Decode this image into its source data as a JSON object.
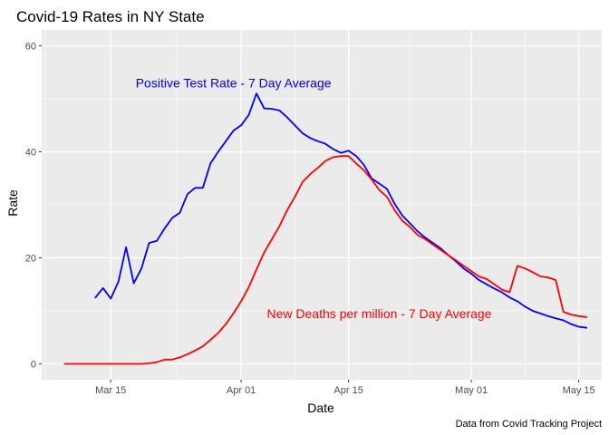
{
  "chart_data": {
    "type": "line",
    "title": "Covid-19 Rates in NY State",
    "xlabel": "Date",
    "ylabel": "Rate",
    "caption": "Data from Covid Tracking Project",
    "xlim": [
      "2020-03-06",
      "2020-05-18"
    ],
    "ylim": [
      -3,
      63
    ],
    "x_ticks": [
      {
        "date": "2020-03-15",
        "label": "Mar 15"
      },
      {
        "date": "2020-04-01",
        "label": "Apr 01"
      },
      {
        "date": "2020-04-15",
        "label": "Apr 15"
      },
      {
        "date": "2020-05-01",
        "label": "May 01"
      },
      {
        "date": "2020-05-15",
        "label": "May 15"
      }
    ],
    "y_ticks": [
      0,
      20,
      40,
      60
    ],
    "grid": true,
    "background": "#ebebeb",
    "series": [
      {
        "color": "#0000ff",
        "annotation": {
          "text": "Positive Test Rate - 7 Day Average",
          "date": "2020-03-31",
          "y": 53
        },
        "points": [
          [
            "2020-03-13",
            12.5
          ],
          [
            "2020-03-14",
            14.3
          ],
          [
            "2020-03-15",
            12.3
          ],
          [
            "2020-03-16",
            15.5
          ],
          [
            "2020-03-17",
            22.0
          ],
          [
            "2020-03-18",
            15.2
          ],
          [
            "2020-03-19",
            18.0
          ],
          [
            "2020-03-20",
            22.8
          ],
          [
            "2020-03-21",
            23.2
          ],
          [
            "2020-03-22",
            25.5
          ],
          [
            "2020-03-23",
            27.5
          ],
          [
            "2020-03-24",
            28.5
          ],
          [
            "2020-03-25",
            32.0
          ],
          [
            "2020-03-26",
            33.2
          ],
          [
            "2020-03-27",
            33.2
          ],
          [
            "2020-03-28",
            37.8
          ],
          [
            "2020-03-29",
            40.0
          ],
          [
            "2020-03-30",
            42.0
          ],
          [
            "2020-03-31",
            44.0
          ],
          [
            "2020-04-01",
            45.0
          ],
          [
            "2020-04-02",
            47.0
          ],
          [
            "2020-04-03",
            51.0
          ],
          [
            "2020-04-04",
            48.2
          ],
          [
            "2020-04-05",
            48.1
          ],
          [
            "2020-04-06",
            47.8
          ],
          [
            "2020-04-07",
            46.5
          ],
          [
            "2020-04-08",
            45.0
          ],
          [
            "2020-04-09",
            43.5
          ],
          [
            "2020-04-10",
            42.6
          ],
          [
            "2020-04-11",
            42.0
          ],
          [
            "2020-04-12",
            41.5
          ],
          [
            "2020-04-13",
            40.5
          ],
          [
            "2020-04-14",
            39.8
          ],
          [
            "2020-04-15",
            40.2
          ],
          [
            "2020-04-16",
            39.2
          ],
          [
            "2020-04-17",
            37.5
          ],
          [
            "2020-04-18",
            35.0
          ],
          [
            "2020-04-19",
            34.0
          ],
          [
            "2020-04-20",
            33.0
          ],
          [
            "2020-04-21",
            30.2
          ],
          [
            "2020-04-22",
            28.0
          ],
          [
            "2020-04-23",
            26.5
          ],
          [
            "2020-04-24",
            25.0
          ],
          [
            "2020-04-25",
            23.8
          ],
          [
            "2020-04-26",
            22.8
          ],
          [
            "2020-04-27",
            21.8
          ],
          [
            "2020-04-28",
            20.5
          ],
          [
            "2020-04-29",
            19.3
          ],
          [
            "2020-04-30",
            18.0
          ],
          [
            "2020-05-01",
            17.0
          ],
          [
            "2020-05-02",
            15.8
          ],
          [
            "2020-05-03",
            15.0
          ],
          [
            "2020-05-04",
            14.2
          ],
          [
            "2020-05-05",
            13.5
          ],
          [
            "2020-05-06",
            12.5
          ],
          [
            "2020-05-07",
            11.8
          ],
          [
            "2020-05-08",
            10.8
          ],
          [
            "2020-05-09",
            10.0
          ],
          [
            "2020-05-10",
            9.5
          ],
          [
            "2020-05-11",
            9.0
          ],
          [
            "2020-05-12",
            8.6
          ],
          [
            "2020-05-13",
            8.2
          ],
          [
            "2020-05-14",
            7.5
          ],
          [
            "2020-05-15",
            7.0
          ],
          [
            "2020-05-16",
            6.8
          ]
        ]
      },
      {
        "color": "#ff0000",
        "annotation": {
          "text": "New Deaths per million - 7 Day Average",
          "date": "2020-04-19",
          "y": 9.5
        },
        "points": [
          [
            "2020-03-09",
            0.0
          ],
          [
            "2020-03-10",
            0.0
          ],
          [
            "2020-03-11",
            0.0
          ],
          [
            "2020-03-12",
            0.0
          ],
          [
            "2020-03-13",
            0.0
          ],
          [
            "2020-03-14",
            0.0
          ],
          [
            "2020-03-15",
            0.0
          ],
          [
            "2020-03-16",
            0.0
          ],
          [
            "2020-03-17",
            0.0
          ],
          [
            "2020-03-18",
            0.0
          ],
          [
            "2020-03-19",
            0.0
          ],
          [
            "2020-03-20",
            0.1
          ],
          [
            "2020-03-21",
            0.3
          ],
          [
            "2020-03-22",
            0.8
          ],
          [
            "2020-03-23",
            0.8
          ],
          [
            "2020-03-24",
            1.2
          ],
          [
            "2020-03-25",
            1.8
          ],
          [
            "2020-03-26",
            2.5
          ],
          [
            "2020-03-27",
            3.3
          ],
          [
            "2020-03-28",
            4.5
          ],
          [
            "2020-03-29",
            5.8
          ],
          [
            "2020-03-30",
            7.5
          ],
          [
            "2020-03-31",
            9.5
          ],
          [
            "2020-04-01",
            11.8
          ],
          [
            "2020-04-02",
            14.5
          ],
          [
            "2020-04-03",
            17.8
          ],
          [
            "2020-04-04",
            21.0
          ],
          [
            "2020-04-05",
            23.5
          ],
          [
            "2020-04-06",
            26.0
          ],
          [
            "2020-04-07",
            29.0
          ],
          [
            "2020-04-08",
            31.5
          ],
          [
            "2020-04-09",
            34.3
          ],
          [
            "2020-04-10",
            35.8
          ],
          [
            "2020-04-11",
            37.0
          ],
          [
            "2020-04-12",
            38.3
          ],
          [
            "2020-04-13",
            39.0
          ],
          [
            "2020-04-14",
            39.2
          ],
          [
            "2020-04-15",
            39.2
          ],
          [
            "2020-04-16",
            37.8
          ],
          [
            "2020-04-17",
            36.5
          ],
          [
            "2020-04-18",
            34.8
          ],
          [
            "2020-04-19",
            32.8
          ],
          [
            "2020-04-20",
            31.5
          ],
          [
            "2020-04-21",
            29.0
          ],
          [
            "2020-04-22",
            27.0
          ],
          [
            "2020-04-23",
            25.8
          ],
          [
            "2020-04-24",
            24.3
          ],
          [
            "2020-04-25",
            23.5
          ],
          [
            "2020-04-26",
            22.5
          ],
          [
            "2020-04-27",
            21.5
          ],
          [
            "2020-04-28",
            20.5
          ],
          [
            "2020-04-29",
            19.5
          ],
          [
            "2020-04-30",
            18.5
          ],
          [
            "2020-05-01",
            17.5
          ],
          [
            "2020-05-02",
            16.5
          ],
          [
            "2020-05-03",
            16.0
          ],
          [
            "2020-05-04",
            15.0
          ],
          [
            "2020-05-05",
            14.0
          ],
          [
            "2020-05-06",
            13.5
          ],
          [
            "2020-05-07",
            18.5
          ],
          [
            "2020-05-08",
            18.0
          ],
          [
            "2020-05-09",
            17.3
          ],
          [
            "2020-05-10",
            16.5
          ],
          [
            "2020-05-11",
            16.3
          ],
          [
            "2020-05-12",
            15.8
          ],
          [
            "2020-05-13",
            9.8
          ],
          [
            "2020-05-14",
            9.3
          ],
          [
            "2020-05-15",
            9.0
          ],
          [
            "2020-05-16",
            8.8
          ]
        ]
      }
    ]
  }
}
